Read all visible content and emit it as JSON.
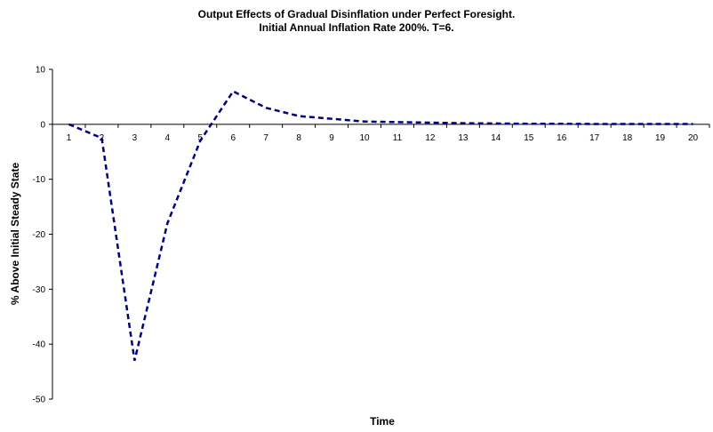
{
  "chart_data": {
    "type": "line",
    "title": "Output Effects of Gradual Disinflation under Perfect Foresight.",
    "subtitle": "Initial Annual Inflation Rate 200%. T=6.",
    "xlabel": "Time",
    "ylabel": "% Above Initial Steady State",
    "ylim": [
      -50,
      10
    ],
    "yticks": [
      10,
      0,
      -10,
      -20,
      -30,
      -40,
      -50
    ],
    "x": [
      1,
      2,
      3,
      4,
      5,
      6,
      7,
      8,
      9,
      10,
      11,
      12,
      13,
      14,
      15,
      16,
      17,
      18,
      19,
      20
    ],
    "series": [
      {
        "color": "#000080",
        "style": "dashed",
        "values": [
          0,
          -2.5,
          -43,
          -18,
          -3,
          6,
          3,
          1.5,
          1,
          0.5,
          0.4,
          0.3,
          0.2,
          0.15,
          0.1,
          0.1,
          0.05,
          0.05,
          0.05,
          0.05
        ]
      }
    ],
    "grid": false,
    "legend": "none"
  }
}
